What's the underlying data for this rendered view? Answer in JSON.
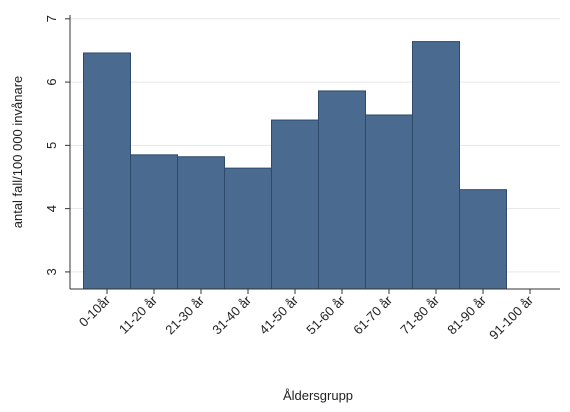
{
  "chart_data": {
    "type": "bar",
    "x_label": "Åldersgrupp",
    "y_label": "antal fall/100 000 invånare",
    "categories": [
      "0-10år",
      "11-20 år",
      "21-30 år",
      "31-40 år",
      "41-50 år",
      "51-60 år",
      "61-70 år",
      "71-80 år",
      "81-90 år",
      "91-100 år"
    ],
    "values": [
      6.46,
      4.85,
      4.82,
      4.64,
      5.4,
      5.86,
      5.48,
      6.64,
      4.3,
      null
    ],
    "color": "#4a6a8f",
    "ylim": [
      2.73,
      7.06
    ],
    "yticks": [
      3,
      4,
      5,
      6,
      7
    ],
    "grid": true
  }
}
